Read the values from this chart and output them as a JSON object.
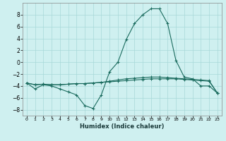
{
  "xlabel": "Humidex (Indice chaleur)",
  "x": [
    0,
    1,
    2,
    3,
    4,
    5,
    6,
    7,
    8,
    9,
    10,
    11,
    12,
    13,
    14,
    15,
    16,
    17,
    18,
    19,
    20,
    21,
    22,
    23
  ],
  "line1": [
    -3.5,
    -4.5,
    -3.8,
    -4.0,
    -4.5,
    -5.0,
    -5.5,
    -7.3,
    -7.8,
    -5.5,
    -1.6,
    0.0,
    3.8,
    6.5,
    8.0,
    9.0,
    9.0,
    6.5,
    0.3,
    -2.5,
    -2.8,
    -4.0,
    -4.0,
    -5.2
  ],
  "line2": [
    -3.5,
    -3.8,
    -3.7,
    -3.8,
    -3.8,
    -3.7,
    -3.6,
    -3.6,
    -3.5,
    -3.4,
    -3.2,
    -3.0,
    -2.8,
    -2.7,
    -2.6,
    -2.5,
    -2.5,
    -2.6,
    -2.7,
    -2.8,
    -2.9,
    -3.0,
    -3.1,
    -5.2
  ],
  "line3": [
    -3.5,
    -3.8,
    -3.7,
    -3.8,
    -3.8,
    -3.7,
    -3.6,
    -3.6,
    -3.5,
    -3.4,
    -3.3,
    -3.2,
    -3.1,
    -3.0,
    -2.9,
    -2.8,
    -2.8,
    -2.8,
    -2.8,
    -2.9,
    -3.0,
    -3.1,
    -3.2,
    -5.2
  ],
  "bg_color": "#cff0f0",
  "line_color": "#1a6b5e",
  "grid_color": "#a8d8d8",
  "ylim": [
    -9,
    10
  ],
  "yticks": [
    -8,
    -6,
    -4,
    -2,
    0,
    2,
    4,
    6,
    8
  ]
}
